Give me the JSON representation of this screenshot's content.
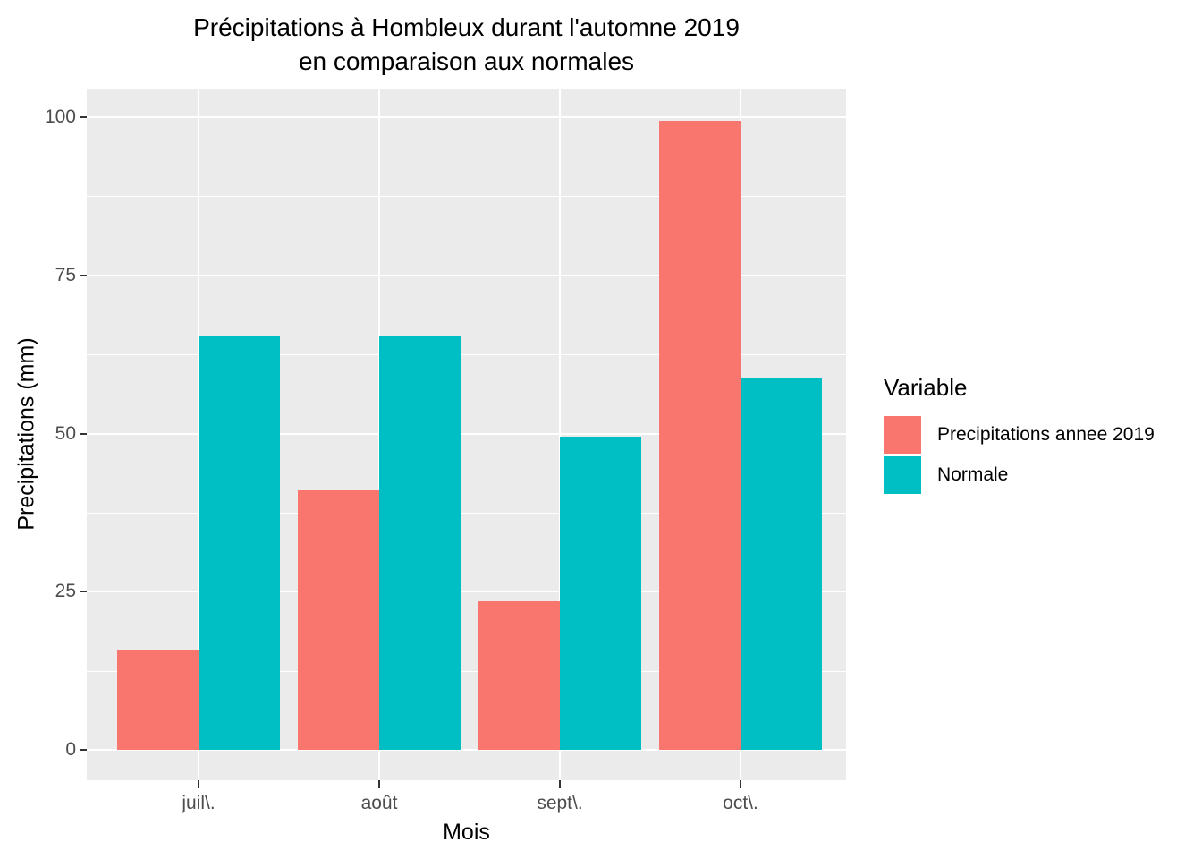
{
  "title": {
    "line1": "Précipitations à Hombleux durant l'automne 2019",
    "line2": "en comparaison aux normales"
  },
  "axes": {
    "x_title": "Mois",
    "y_title": "Precipitations (mm)"
  },
  "legend": {
    "title": "Variable"
  },
  "colors": {
    "panel_bg": "#EBEBEB",
    "grid": "#FFFFFF",
    "tick_text": "#4D4D4D",
    "tick_mark": "#333333",
    "text": "#000000"
  },
  "chart_data": {
    "type": "bar",
    "title": "Précipitations à Hombleux durant l'automne 2019 en comparaison aux normales",
    "xlabel": "Mois",
    "ylabel": "Precipitations (mm)",
    "categories": [
      "juil\\.",
      "août",
      "sept\\.",
      "oct\\."
    ],
    "series": [
      {
        "name": "Precipitations annee 2019",
        "color": "#F8766D",
        "values": [
          15.8,
          41.0,
          23.5,
          99.5
        ]
      },
      {
        "name": "Normale",
        "color": "#00BFC4",
        "values": [
          65.5,
          65.5,
          49.5,
          58.8
        ]
      }
    ],
    "ylim": [
      0,
      100
    ],
    "yticks": [
      0,
      25,
      50,
      75,
      100
    ],
    "grid": true,
    "legend_title": "Variable",
    "legend_position": "right"
  }
}
